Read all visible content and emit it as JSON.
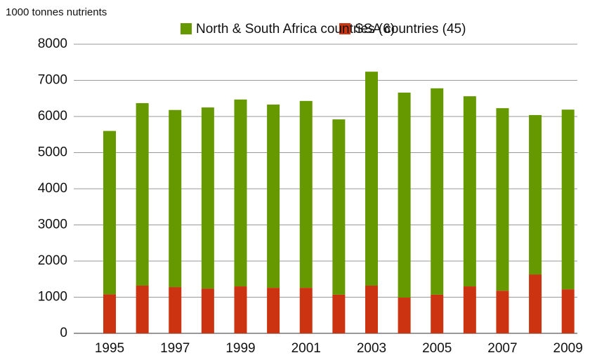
{
  "chart_data": {
    "type": "stacked_bar",
    "y_axis_label": "1000 tonnes nutrients",
    "categories": [
      "1995",
      null,
      "1997",
      null,
      "1999",
      null,
      "2001",
      null,
      "2003",
      null,
      "2005",
      null,
      "2007",
      null,
      "2009"
    ],
    "series": [
      {
        "name": "SSA countries (45)",
        "color": "#cc3311",
        "values": [
          1080,
          1320,
          1280,
          1240,
          1300,
          1260,
          1260,
          1070,
          1320,
          990,
          1070,
          1300,
          1180,
          1630,
          1220
        ]
      },
      {
        "name": "North & South Africa countries (6)",
        "color": "#669900",
        "values": [
          4520,
          5050,
          4900,
          5010,
          5170,
          5070,
          5170,
          4850,
          5920,
          5670,
          5710,
          5260,
          5050,
          4410,
          4970
        ]
      }
    ],
    "ylim": [
      0,
      8000
    ],
    "yticks": [
      0,
      1000,
      2000,
      3000,
      4000,
      5000,
      6000,
      7000,
      8000
    ],
    "grid": true
  }
}
